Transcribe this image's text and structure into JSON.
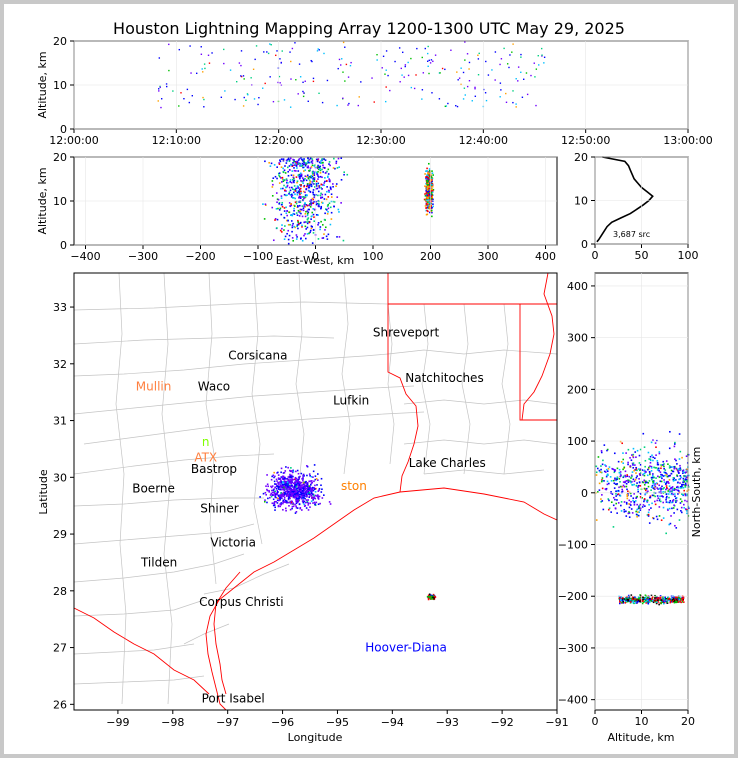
{
  "title": "Houston Lightning Mapping Array 1200-1300 UTC May 29, 2025",
  "colors": {
    "background": "#c8c8c8",
    "panel": "#ffffff",
    "state_border": "#ff0000",
    "county_border": "#c0c0c0",
    "count_label_style": "small"
  },
  "chart_data": [
    {
      "type": "scatter",
      "panel": "altitude-time",
      "ylabel": "Altitude, km",
      "ylim": [
        0,
        20
      ],
      "yticks": [
        "0",
        "10",
        "20"
      ],
      "xticks": [
        "12:00:00",
        "12:10:00",
        "12:20:00",
        "12:30:00",
        "12:40:00",
        "12:50:00",
        "13:00:00"
      ],
      "xlim_minutes": [
        0,
        60
      ],
      "clusters": [
        {
          "x_range": [
            8,
            46
          ],
          "y_range": [
            5,
            20
          ],
          "points": 260
        }
      ]
    },
    {
      "type": "scatter",
      "panel": "altitude-east-west",
      "xlabel": "East-West, km",
      "ylabel": "Altitude, km",
      "xlim": [
        -420,
        420
      ],
      "ylim": [
        0,
        20
      ],
      "xticks": [
        "−400",
        "−300",
        "−200",
        "−100",
        "0",
        "100",
        "200",
        "300",
        "400"
      ],
      "yticks": [
        "0",
        "10",
        "20"
      ],
      "clusters": [
        {
          "x_range": [
            -100,
            60
          ],
          "y_range": [
            0,
            20
          ],
          "points": 700
        },
        {
          "x_range": [
            188,
            205
          ],
          "y_range": [
            6,
            19
          ],
          "points": 500
        }
      ]
    },
    {
      "type": "line",
      "panel": "altitude-histogram",
      "xlim": [
        0,
        100
      ],
      "ylim": [
        0,
        20
      ],
      "xticks": [
        "0",
        "50",
        "100"
      ],
      "yticks": [
        "0",
        "10",
        "20"
      ],
      "annotation": "3,687 src",
      "profile": [
        [
          2,
          0.5
        ],
        [
          4,
          1
        ],
        [
          7,
          2
        ],
        [
          10,
          3
        ],
        [
          13,
          4
        ],
        [
          18,
          5
        ],
        [
          28,
          6
        ],
        [
          38,
          7
        ],
        [
          45,
          8
        ],
        [
          52,
          9
        ],
        [
          58,
          10
        ],
        [
          62,
          11
        ],
        [
          56,
          12
        ],
        [
          50,
          13
        ],
        [
          46,
          14
        ],
        [
          42,
          15
        ],
        [
          40,
          16
        ],
        [
          38,
          17
        ],
        [
          36,
          18
        ],
        [
          32,
          19
        ],
        [
          8,
          20
        ]
      ]
    },
    {
      "type": "map",
      "panel": "plan-view",
      "xlabel": "Longitude",
      "ylabel": "Latitude",
      "xlim": [
        -99.8,
        -91
      ],
      "ylim": [
        25.9,
        33.6
      ],
      "xticks": [
        "−99",
        "−98",
        "−97",
        "−96",
        "−95",
        "−94",
        "−93",
        "−92",
        "−91"
      ],
      "yticks": [
        "26",
        "27",
        "28",
        "29",
        "30",
        "31",
        "32",
        "33"
      ],
      "place_labels": [
        {
          "name": "Shreveport",
          "lon": -93.75,
          "lat": 32.55,
          "color": "#000000"
        },
        {
          "name": "Corsicana",
          "lon": -96.45,
          "lat": 32.15,
          "color": "#000000"
        },
        {
          "name": "Natchitoches",
          "lon": -93.05,
          "lat": 31.75,
          "color": "#000000"
        },
        {
          "name": "Mullin",
          "lon": -98.35,
          "lat": 31.6,
          "color": "#ff8040"
        },
        {
          "name": "Waco",
          "lon": -97.25,
          "lat": 31.6,
          "color": "#000000"
        },
        {
          "name": "Lufkin",
          "lon": -94.75,
          "lat": 31.35,
          "color": "#000000"
        },
        {
          "name": "Lake Charles",
          "lon": -93.0,
          "lat": 30.25,
          "color": "#000000"
        },
        {
          "name": "Boerne",
          "lon": -98.35,
          "lat": 29.8,
          "color": "#000000"
        },
        {
          "name": "Bastrop",
          "lon": -97.25,
          "lat": 30.15,
          "color": "#000000"
        },
        {
          "name": "Shiner",
          "lon": -97.15,
          "lat": 29.45,
          "color": "#000000"
        },
        {
          "name": "Victoria",
          "lon": -96.9,
          "lat": 28.85,
          "color": "#000000"
        },
        {
          "name": "Tilden",
          "lon": -98.25,
          "lat": 28.5,
          "color": "#000000"
        },
        {
          "name": "Corpus Christi",
          "lon": -96.75,
          "lat": 27.8,
          "color": "#000000"
        },
        {
          "name": "Hoover-Diana",
          "lon": -93.75,
          "lat": 27.0,
          "color": "#0000ff"
        },
        {
          "name": "Port Isabel",
          "lon": -96.9,
          "lat": 26.1,
          "color": "#000000"
        },
        {
          "name": "ATX",
          "lon": -97.4,
          "lat": 30.35,
          "color": "#ff8040"
        },
        {
          "name": "n",
          "lon": -97.4,
          "lat": 30.62,
          "color": "#80ff00"
        },
        {
          "name": "ston",
          "lon": -94.7,
          "lat": 29.85,
          "color": "#ff8000"
        }
      ],
      "clusters": [
        {
          "lon_range": [
            -96.4,
            -95.2
          ],
          "lat_range": [
            29.4,
            30.2
          ],
          "points": 800
        },
        {
          "lon_range": [
            -93.4,
            -93.2
          ],
          "lat_range": [
            27.85,
            27.95
          ],
          "points": 90
        }
      ]
    },
    {
      "type": "scatter",
      "panel": "north-south-altitude",
      "xlabel": "Altitude, km",
      "ylabel": "North-South, km",
      "xlim": [
        0,
        20
      ],
      "ylim": [
        -420,
        425
      ],
      "xticks": [
        "0",
        "10",
        "20"
      ],
      "yticks": [
        "−400",
        "−300",
        "−200",
        "−100",
        "0",
        "100",
        "200",
        "300",
        "400"
      ],
      "clusters": [
        {
          "x_range": [
            0,
            20
          ],
          "y_range": [
            -80,
            120
          ],
          "points": 700
        },
        {
          "x_range": [
            5,
            19
          ],
          "y_range": [
            -215,
            -195
          ],
          "points": 450
        }
      ]
    }
  ]
}
